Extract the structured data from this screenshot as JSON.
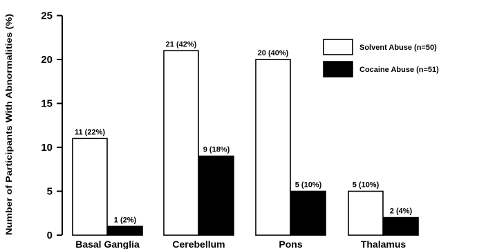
{
  "chart_data": {
    "type": "bar",
    "title": "",
    "xlabel": "",
    "ylabel": "Number of Participants With Abnormalities (%)",
    "ylim": [
      0,
      25
    ],
    "yticks": [
      0,
      5,
      10,
      15,
      20,
      25
    ],
    "categories": [
      "Basal Ganglia",
      "Cerebellum",
      "Pons",
      "Thalamus"
    ],
    "series": [
      {
        "name": "Solvent Abuse (n=50)",
        "values": [
          11,
          21,
          20,
          5
        ],
        "labels": [
          "11 (22%)",
          "21 (42%)",
          "20 (40%)",
          "5 (10%)"
        ],
        "color": "#ffffff"
      },
      {
        "name": "Cocaine Abuse (n=51)",
        "values": [
          1,
          9,
          5,
          2
        ],
        "labels": [
          "1 (2%)",
          "9 (18%)",
          "5 (10%)",
          "2 (4%)"
        ],
        "color": "#000000"
      }
    ],
    "legend_position": "top-right",
    "grid": false
  }
}
